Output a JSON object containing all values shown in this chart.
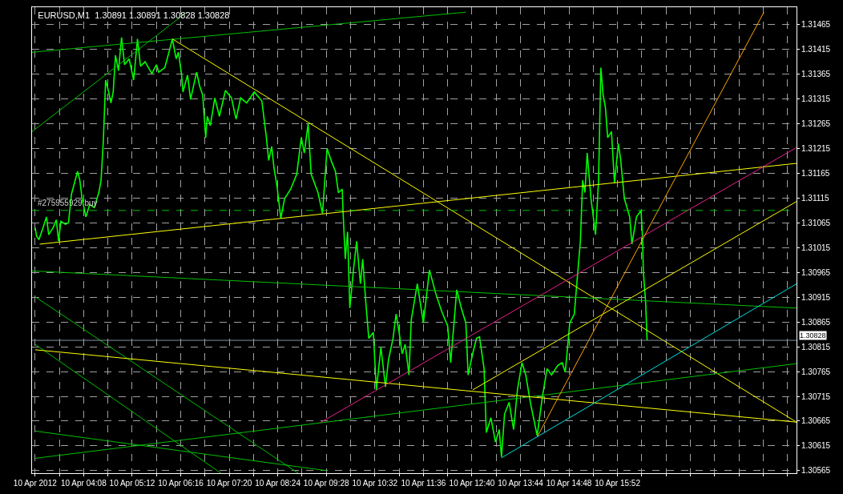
{
  "chart_data": {
    "type": "line",
    "title": "EURUSD,M1  1.30891 1.30891 1.30828 1.30828",
    "xlim": [
      "2012-04-10T03:00",
      "2012-04-10T19:48"
    ],
    "ylim": [
      1.3056,
      1.315
    ],
    "xticks": [
      {
        "value": "2012-04-10T03:04",
        "label": "10 Apr 2012"
      },
      {
        "value": "2012-04-10T03:36",
        "label": null
      },
      {
        "value": "2012-04-10T04:08",
        "label": "10 Apr 04:08"
      },
      {
        "value": "2012-04-10T04:40",
        "label": null
      },
      {
        "value": "2012-04-10T05:12",
        "label": "10 Apr 05:12"
      },
      {
        "value": "2012-04-10T05:44",
        "label": null
      },
      {
        "value": "2012-04-10T06:16",
        "label": "10 Apr 06:16"
      },
      {
        "value": "2012-04-10T06:48",
        "label": null
      },
      {
        "value": "2012-04-10T07:20",
        "label": "10 Apr 07:20"
      },
      {
        "value": "2012-04-10T07:52",
        "label": null
      },
      {
        "value": "2012-04-10T08:24",
        "label": "10 Apr 08:24"
      },
      {
        "value": "2012-04-10T08:56",
        "label": null
      },
      {
        "value": "2012-04-10T09:28",
        "label": "10 Apr 09:28"
      },
      {
        "value": "2012-04-10T10:00",
        "label": null
      },
      {
        "value": "2012-04-10T10:32",
        "label": "10 Apr 10:32"
      },
      {
        "value": "2012-04-10T11:04",
        "label": null
      },
      {
        "value": "2012-04-10T11:36",
        "label": "10 Apr 11:36"
      },
      {
        "value": "2012-04-10T12:08",
        "label": null
      },
      {
        "value": "2012-04-10T12:40",
        "label": "10 Apr 12:40"
      },
      {
        "value": "2012-04-10T13:12",
        "label": null
      },
      {
        "value": "2012-04-10T13:44",
        "label": "10 Apr 13:44"
      },
      {
        "value": "2012-04-10T14:16",
        "label": null
      },
      {
        "value": "2012-04-10T14:48",
        "label": "10 Apr 14:48"
      },
      {
        "value": "2012-04-10T15:20",
        "label": null
      },
      {
        "value": "2012-04-10T15:52",
        "label": "10 Apr 15:52"
      },
      {
        "value": "2012-04-10T16:24",
        "label": null
      },
      {
        "value": "2012-04-10T16:56",
        "label": null
      },
      {
        "value": "2012-04-10T17:28",
        "label": null
      },
      {
        "value": "2012-04-10T18:00",
        "label": null
      },
      {
        "value": "2012-04-10T18:32",
        "label": null
      },
      {
        "value": "2012-04-10T19:04",
        "label": null
      },
      {
        "value": "2012-04-10T19:36",
        "label": null
      }
    ],
    "yticks": [
      1.30565,
      1.30615,
      1.30665,
      1.30715,
      1.30765,
      1.30815,
      1.30865,
      1.30915,
      1.30965,
      1.31015,
      1.31065,
      1.31115,
      1.31165,
      1.31215,
      1.31265,
      1.31315,
      1.31365,
      1.31415,
      1.31465
    ],
    "grid": true,
    "marker": "none",
    "line_style": "solid",
    "ref_lines": [
      {
        "axis": "y",
        "value": 1.3109,
        "label": "#275955929 buy",
        "color": "#00c000",
        "line_style": "dashed"
      },
      {
        "axis": "y",
        "value": 1.30828,
        "label": "1.30828",
        "color": "#8090a0",
        "line_style": "solid"
      }
    ],
    "series": [
      {
        "color": "#00ff00",
        "x": [
          "2012-04-10T03:04",
          "2012-04-10T03:06",
          "2012-04-10T03:09",
          "2012-04-10T03:14",
          "2012-04-10T03:19",
          "2012-04-10T03:22",
          "2012-04-10T03:28",
          "2012-04-10T03:32",
          "2012-04-10T03:35",
          "2012-04-10T03:38",
          "2012-04-10T03:44",
          "2012-04-10T03:48",
          "2012-04-10T03:52",
          "2012-04-10T04:00",
          "2012-04-10T04:03",
          "2012-04-10T04:06",
          "2012-04-10T04:11",
          "2012-04-10T04:16",
          "2012-04-10T04:22",
          "2012-04-10T04:28",
          "2012-04-10T04:31",
          "2012-04-10T04:34",
          "2012-04-10T04:37",
          "2012-04-10T04:41",
          "2012-04-10T04:44",
          "2012-04-10T04:47",
          "2012-04-10T04:50",
          "2012-04-10T04:54",
          "2012-04-10T04:58",
          "2012-04-10T05:02",
          "2012-04-10T05:08",
          "2012-04-10T05:14",
          "2012-04-10T05:19",
          "2012-04-10T05:23",
          "2012-04-10T05:29",
          "2012-04-10T05:38",
          "2012-04-10T05:44",
          "2012-04-10T05:47",
          "2012-04-10T05:55",
          "2012-04-10T06:01",
          "2012-04-10T06:05",
          "2012-04-10T06:10",
          "2012-04-10T06:13",
          "2012-04-10T06:17",
          "2012-04-10T06:19",
          "2012-04-10T06:25",
          "2012-04-10T06:29",
          "2012-04-10T06:37",
          "2012-04-10T06:41",
          "2012-04-10T06:45",
          "2012-04-10T06:49",
          "2012-04-10T06:51",
          "2012-04-10T06:55",
          "2012-04-10T07:01",
          "2012-04-10T07:07",
          "2012-04-10T07:15",
          "2012-04-10T07:23",
          "2012-04-10T07:29",
          "2012-04-10T07:35",
          "2012-04-10T07:43",
          "2012-04-10T07:53",
          "2012-04-10T08:03",
          "2012-04-10T08:09",
          "2012-04-10T08:12",
          "2012-04-10T08:16",
          "2012-04-10T08:19",
          "2012-04-10T08:23",
          "2012-04-10T08:28",
          "2012-04-10T08:33",
          "2012-04-10T08:41",
          "2012-04-10T08:49",
          "2012-04-10T08:55",
          "2012-04-10T08:59",
          "2012-04-10T09:04",
          "2012-04-10T09:08",
          "2012-04-10T09:17",
          "2012-04-10T09:23",
          "2012-04-10T09:29",
          "2012-04-10T09:35",
          "2012-04-10T09:40",
          "2012-04-10T09:44",
          "2012-04-10T09:49",
          "2012-04-10T09:50",
          "2012-04-10T09:53",
          "2012-04-10T09:56",
          "2012-04-10T09:59",
          "2012-04-10T10:04",
          "2012-04-10T10:08",
          "2012-04-10T10:13",
          "2012-04-10T10:16",
          "2012-04-10T10:20",
          "2012-04-10T10:24",
          "2012-04-10T10:30",
          "2012-04-10T10:34",
          "2012-04-10T10:40",
          "2012-04-10T10:46",
          "2012-04-10T10:50",
          "2012-04-10T10:56",
          "2012-04-10T11:00",
          "2012-04-10T11:04",
          "2012-04-10T11:08",
          "2012-04-10T11:12",
          "2012-04-10T11:17",
          "2012-04-10T11:20",
          "2012-04-10T11:28",
          "2012-04-10T11:36",
          "2012-04-10T11:44",
          "2012-04-10T11:52",
          "2012-04-10T12:00",
          "2012-04-10T12:08",
          "2012-04-10T12:12",
          "2012-04-10T12:20",
          "2012-04-10T12:26",
          "2012-04-10T12:32",
          "2012-04-10T12:35",
          "2012-04-10T12:41",
          "2012-04-10T12:46",
          "2012-04-10T12:50",
          "2012-04-10T12:56",
          "2012-04-10T12:59",
          "2012-04-10T13:05",
          "2012-04-10T13:11",
          "2012-04-10T13:16",
          "2012-04-10T13:19",
          "2012-04-10T13:23",
          "2012-04-10T13:29",
          "2012-04-10T13:35",
          "2012-04-10T13:40",
          "2012-04-10T13:46",
          "2012-04-10T13:51",
          "2012-04-10T13:57",
          "2012-04-10T14:06",
          "2012-04-10T14:13",
          "2012-04-10T14:19",
          "2012-04-10T14:25",
          "2012-04-10T14:33",
          "2012-04-10T14:39",
          "2012-04-10T14:43",
          "2012-04-10T14:45",
          "2012-04-10T14:49",
          "2012-04-10T14:55",
          "2012-04-10T14:59",
          "2012-04-10T15:03",
          "2012-04-10T15:06",
          "2012-04-10T15:09",
          "2012-04-10T15:12",
          "2012-04-10T15:17",
          "2012-04-10T15:23",
          "2012-04-10T15:27",
          "2012-04-10T15:30",
          "2012-04-10T15:33",
          "2012-04-10T15:36",
          "2012-04-10T15:39",
          "2012-04-10T15:44",
          "2012-04-10T15:48",
          "2012-04-10T15:53",
          "2012-04-10T15:56",
          "2012-04-10T16:01",
          "2012-04-10T16:08",
          "2012-04-10T16:11",
          "2012-04-10T16:17",
          "2012-04-10T16:23",
          "2012-04-10T16:25",
          "2012-04-10T16:26",
          "2012-04-10T16:29",
          "2012-04-10T16:31"
        ],
        "values": [
          1.31056,
          1.31038,
          1.31031,
          1.31053,
          1.31077,
          1.31041,
          1.31056,
          1.31071,
          1.31028,
          1.31068,
          1.31062,
          1.31065,
          1.31123,
          1.31169,
          1.31151,
          1.31114,
          1.31077,
          1.31102,
          1.31096,
          1.31126,
          1.31151,
          1.31231,
          1.31353,
          1.31329,
          1.31307,
          1.31329,
          1.31403,
          1.31372,
          1.31439,
          1.31384,
          1.31396,
          1.31353,
          1.31436,
          1.31381,
          1.3139,
          1.31366,
          1.31384,
          1.31369,
          1.31378,
          1.31412,
          1.31436,
          1.31396,
          1.31409,
          1.31366,
          1.31329,
          1.31363,
          1.31314,
          1.31369,
          1.31341,
          1.31323,
          1.31237,
          1.3128,
          1.31261,
          1.31317,
          1.3128,
          1.31332,
          1.31317,
          1.31274,
          1.31317,
          1.31307,
          1.31329,
          1.31311,
          1.31237,
          1.31191,
          1.31219,
          1.31176,
          1.31139,
          1.31074,
          1.31114,
          1.31133,
          1.31163,
          1.31237,
          1.31206,
          1.31265,
          1.31163,
          1.31126,
          1.31084,
          1.31215,
          1.31188,
          1.31169,
          1.31126,
          1.31133,
          1.3109,
          1.30992,
          1.31047,
          1.30893,
          1.30973,
          1.31028,
          1.30942,
          1.30992,
          1.30906,
          1.30832,
          1.30844,
          1.30728,
          1.30814,
          1.30734,
          1.30789,
          1.30832,
          1.30881,
          1.30844,
          1.30801,
          1.3082,
          1.30758,
          1.30869,
          1.30942,
          1.30863,
          1.3097,
          1.30924,
          1.30887,
          1.30857,
          1.30783,
          1.3093,
          1.30893,
          1.30863,
          1.30758,
          1.30801,
          1.30832,
          1.30835,
          1.30771,
          1.30642,
          1.30672,
          1.30623,
          1.30648,
          1.30593,
          1.30679,
          1.30703,
          1.30648,
          1.30728,
          1.30783,
          1.30758,
          1.30703,
          1.30636,
          1.30715,
          1.30771,
          1.30758,
          1.30777,
          1.30783,
          1.30764,
          1.30795,
          1.30863,
          1.30881,
          1.30955,
          1.31028,
          1.31151,
          1.31126,
          1.31206,
          1.31114,
          1.31041,
          1.31151,
          1.31378,
          1.31323,
          1.31298,
          1.31237,
          1.31249,
          1.31145,
          1.31225,
          1.31194,
          1.31114,
          1.31077,
          1.31022,
          1.31077,
          1.3109,
          1.31034,
          1.30967,
          1.30906,
          1.30828
        ]
      },
      {
        "color": "#00c000",
        "x": [
          "2012-04-10T03:00",
          "2012-04-10T12:32"
        ],
        "values": [
          1.31409,
          1.3149
        ]
      },
      {
        "color": "#00c000",
        "x": [
          "2012-04-10T03:00",
          "2012-04-10T06:24"
        ],
        "values": [
          1.31249,
          1.3149
        ]
      },
      {
        "color": "#ffff00",
        "x": [
          "2012-04-10T06:05",
          "2012-04-10T19:48"
        ],
        "values": [
          1.31436,
          1.30663
        ]
      },
      {
        "color": "#ffff00",
        "x": [
          "2012-04-10T03:10",
          "2012-04-10T19:48"
        ],
        "values": [
          1.31022,
          1.31185
        ]
      },
      {
        "color": "#00c000",
        "x": [
          "2012-04-10T03:00",
          "2012-04-10T19:48"
        ],
        "values": [
          1.30968,
          1.30893
        ]
      },
      {
        "color": "#00c000",
        "x": [
          "2012-04-10T03:04",
          "2012-04-10T08:51"
        ],
        "values": [
          1.30916,
          1.3056
        ]
      },
      {
        "color": "#00c000",
        "x": [
          "2012-04-10T03:04",
          "2012-04-10T07:09"
        ],
        "values": [
          1.3082,
          1.3056
        ]
      },
      {
        "color": "#00c000",
        "x": [
          "2012-04-10T03:04",
          "2012-04-10T09:29"
        ],
        "values": [
          1.30645,
          1.30565
        ]
      },
      {
        "color": "#00c000",
        "x": [
          "2012-04-10T03:04",
          "2012-04-10T19:48"
        ],
        "values": [
          1.3059,
          1.30781
        ]
      },
      {
        "color": "#ffff00",
        "x": [
          "2012-04-10T03:04",
          "2012-04-10T19:48"
        ],
        "values": [
          1.30809,
          1.30663
        ]
      },
      {
        "color": "#e8208c",
        "x": [
          "2012-04-10T09:20",
          "2012-04-10T19:48"
        ],
        "values": [
          1.30662,
          1.31217
        ]
      },
      {
        "color": "#ffff00",
        "x": [
          "2012-04-10T12:41",
          "2012-04-10T19:48"
        ],
        "values": [
          1.30728,
          1.31108
        ]
      },
      {
        "color": "#ffa500",
        "x": [
          "2012-04-10T14:06",
          "2012-04-10T19:05"
        ],
        "values": [
          1.30633,
          1.3149
        ]
      },
      {
        "color": "#00e0e0",
        "x": [
          "2012-04-10T13:19",
          "2012-04-10T19:48"
        ],
        "values": [
          1.30591,
          1.30942
        ]
      }
    ]
  }
}
